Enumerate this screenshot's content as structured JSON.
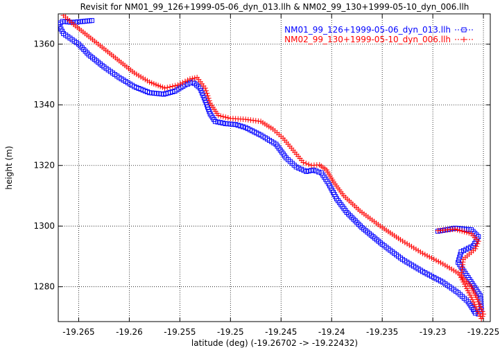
{
  "chart_data": {
    "type": "scatter",
    "title": "Revisit for NM01_99_126+1999-05-06_dyn_013.llh & NM02_99_130+1999-05-10_dyn_006.llh",
    "xlabel": "latitude (deg) (-19.26702 -> -19.22432)",
    "ylabel": "height (m)",
    "xlim": [
      -19.26702,
      -19.22432
    ],
    "ylim": [
      1268.5,
      1370
    ],
    "x_ticks": [
      -19.265,
      -19.26,
      -19.255,
      -19.25,
      -19.245,
      -19.24,
      -19.235,
      -19.23,
      -19.225
    ],
    "y_ticks": [
      1280,
      1300,
      1320,
      1340,
      1360
    ],
    "x_tick_labels": [
      "-19.265",
      "-19.26",
      "-19.255",
      "-19.25",
      "-19.245",
      "-19.24",
      "-19.235",
      "-19.23",
      "-19.225"
    ],
    "y_tick_labels": [
      "1280",
      "1300",
      "1320",
      "1340",
      "1360"
    ],
    "grid": true,
    "legend_position": "top-right",
    "series": [
      {
        "name": "NM01_99_126+1999-05-06_dyn_013.llh",
        "color": "#0000ff",
        "marker": "square",
        "x": [
          -19.2637,
          -19.2646,
          -19.2656,
          -19.2666,
          -19.267,
          -19.2665,
          -19.265,
          -19.264,
          -19.2625,
          -19.261,
          -19.2595,
          -19.258,
          -19.2566,
          -19.2555,
          -19.2545,
          -19.2537,
          -19.253,
          -19.2525,
          -19.252,
          -19.2515,
          -19.2505,
          -19.2495,
          -19.2485,
          -19.247,
          -19.2455,
          -19.2445,
          -19.2435,
          -19.2425,
          -19.2418,
          -19.241,
          -19.2403,
          -19.2395,
          -19.2385,
          -19.237,
          -19.235,
          -19.233,
          -19.231,
          -19.229,
          -19.2275,
          -19.2265,
          -19.226,
          -19.2258,
          -19.2255,
          -19.2252,
          -19.2253,
          -19.2265,
          -19.2275,
          -19.2272,
          -19.226,
          -19.2255,
          -19.2262,
          -19.2278,
          -19.2295
        ],
        "y": [
          1367.8,
          1367.5,
          1367.2,
          1367.5,
          1366.5,
          1363.5,
          1360.0,
          1356.5,
          1352.5,
          1349.0,
          1346.0,
          1344.0,
          1343.5,
          1344.5,
          1346.5,
          1347.5,
          1345.5,
          1341.5,
          1337.0,
          1334.5,
          1333.8,
          1333.5,
          1332.5,
          1330.0,
          1327.0,
          1322.5,
          1319.5,
          1318.0,
          1318.5,
          1317.5,
          1314.0,
          1309.0,
          1304.5,
          1299.5,
          1294.0,
          1289.0,
          1285.0,
          1281.5,
          1278.0,
          1275.0,
          1272.5,
          1271.3,
          1271.0,
          1272.5,
          1277.0,
          1283.0,
          1288.0,
          1291.5,
          1293.5,
          1296.5,
          1298.8,
          1299.3,
          1298.3
        ]
      },
      {
        "name": "NM02_99_130+1999-05-10_dyn_006.llh",
        "color": "#ff0000",
        "marker": "plus",
        "x": [
          -19.2665,
          -19.2655,
          -19.264,
          -19.2625,
          -19.261,
          -19.2595,
          -19.258,
          -19.2565,
          -19.2552,
          -19.254,
          -19.2533,
          -19.2525,
          -19.252,
          -19.2512,
          -19.25,
          -19.2485,
          -19.247,
          -19.2458,
          -19.2448,
          -19.2438,
          -19.2428,
          -19.242,
          -19.2412,
          -19.2405,
          -19.2398,
          -19.2388,
          -19.2372,
          -19.2352,
          -19.2332,
          -19.231,
          -19.229,
          -19.2275,
          -19.2262,
          -19.2257,
          -19.2253,
          -19.225,
          -19.2252,
          -19.2262,
          -19.2272,
          -19.227,
          -19.2258,
          -19.2255,
          -19.2262,
          -19.2278,
          -19.2295
        ],
        "y": [
          1369.5,
          1366.5,
          1362.5,
          1358.5,
          1354.5,
          1350.5,
          1347.5,
          1345.5,
          1346.5,
          1348.5,
          1349.0,
          1345.5,
          1340.5,
          1336.5,
          1335.5,
          1335.2,
          1334.5,
          1332.0,
          1329.0,
          1325.0,
          1321.0,
          1320.0,
          1320.2,
          1318.5,
          1314.5,
          1310.0,
          1305.0,
          1300.0,
          1295.5,
          1291.0,
          1287.5,
          1284.5,
          1280.0,
          1276.5,
          1273.5,
          1271.0,
          1269.5,
          1276.5,
          1283.0,
          1289.0,
          1292.5,
          1295.0,
          1297.5,
          1299.0,
          1298.5
        ]
      }
    ]
  }
}
